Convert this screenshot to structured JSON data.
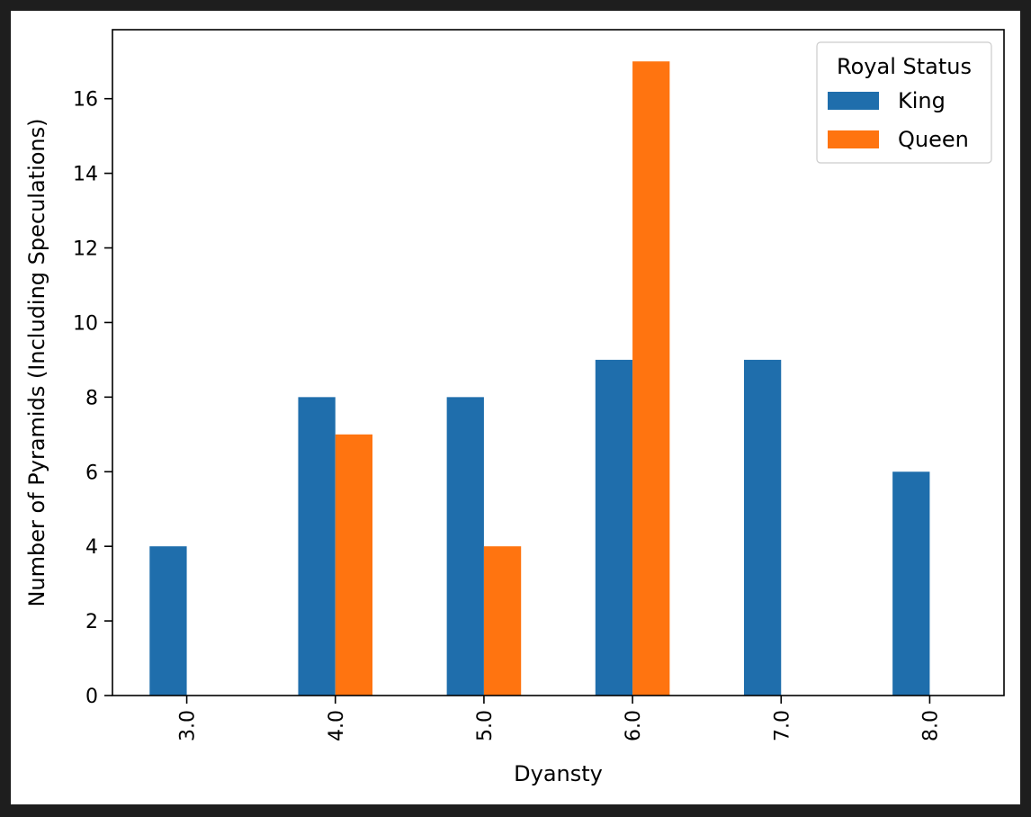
{
  "chart_data": {
    "type": "bar",
    "categories": [
      "3.0",
      "4.0",
      "5.0",
      "6.0",
      "7.0",
      "8.0"
    ],
    "series": [
      {
        "name": "King",
        "values": [
          4,
          8,
          8,
          9,
          9,
          6
        ],
        "color": "#1f6eac"
      },
      {
        "name": "Queen",
        "values": [
          0,
          7,
          4,
          17,
          0,
          0
        ],
        "color": "#ff7410"
      }
    ],
    "xlabel": "Dyansty",
    "ylabel": "Number of Pyramids (Including Speculations)",
    "ylim": [
      0,
      17.85
    ],
    "yticks": [
      0,
      2,
      4,
      6,
      8,
      10,
      12,
      14,
      16
    ],
    "legend": {
      "title": "Royal Status",
      "placement": "top-right"
    },
    "grid": false,
    "x_tick_rotation": "vertical"
  }
}
